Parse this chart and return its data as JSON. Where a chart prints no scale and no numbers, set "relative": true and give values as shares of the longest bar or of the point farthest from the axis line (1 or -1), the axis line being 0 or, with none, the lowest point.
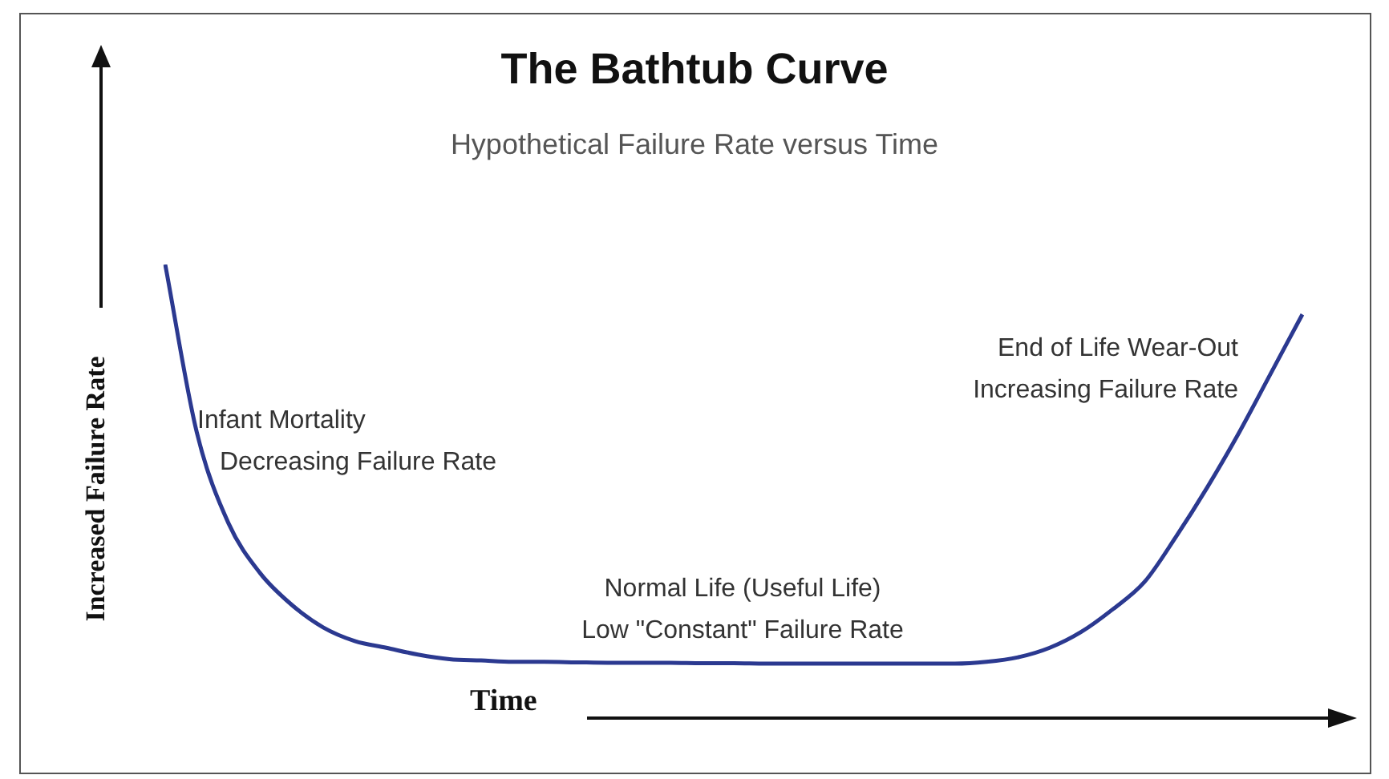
{
  "chart_data": {
    "type": "line",
    "title": "The Bathtub Curve",
    "subtitle": "Hypothetical Failure Rate versus Time",
    "xlabel": "Time",
    "ylabel": "Increased Failure Rate",
    "relative": true,
    "annotations": [
      "Infant Mortality\nDecreasing Failure Rate",
      "Normal Life (Useful Life)\nLow \"Constant\" Failure Rate",
      "End of Life Wear-Out\nIncreasing Failure Rate"
    ],
    "categories": [
      null,
      null,
      null,
      null,
      null,
      null,
      null,
      null,
      null,
      null,
      null,
      null,
      null,
      null,
      null,
      null,
      null,
      null,
      null,
      null,
      null,
      null,
      null,
      null,
      null,
      null,
      null,
      null,
      null,
      null,
      null,
      null,
      null,
      null,
      null,
      null,
      null
    ],
    "series": [
      {
        "color": "#2b3990",
        "values": [
          1.0,
          0.63,
          0.43,
          0.32,
          0.25,
          0.2,
          0.17,
          0.155,
          0.14,
          0.13,
          0.127,
          0.124,
          0.124,
          0.123,
          0.122,
          0.122,
          0.122,
          0.121,
          0.121,
          0.12,
          0.12,
          0.12,
          0.12,
          0.12,
          0.12,
          0.12,
          0.124,
          0.134,
          0.155,
          0.19,
          0.24,
          0.3,
          0.4,
          0.51,
          0.63,
          0.76,
          0.89
        ]
      }
    ]
  }
}
